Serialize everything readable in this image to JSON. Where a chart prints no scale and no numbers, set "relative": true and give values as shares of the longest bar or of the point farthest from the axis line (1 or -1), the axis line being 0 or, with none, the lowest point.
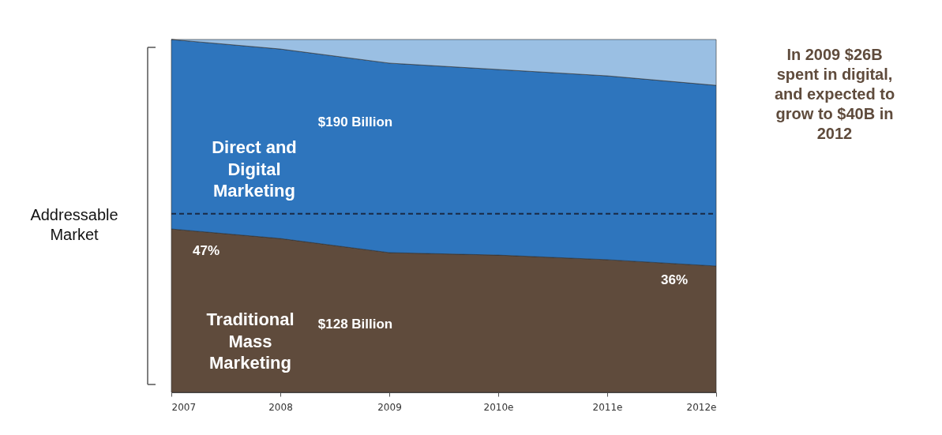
{
  "chart_data": {
    "type": "area",
    "stacked": true,
    "relative": true,
    "categories": [
      "2007",
      "2008",
      "2009",
      "2010e",
      "2011e",
      "2012e"
    ],
    "series": [
      {
        "name": "Traditional Mass Marketing",
        "color": "#5f4b3c",
        "values": [
          0.463,
          0.436,
          0.396,
          0.389,
          0.376,
          0.358
        ]
      },
      {
        "name": "Direct and Digital Marketing",
        "color": "#2e75bd",
        "values": [
          0.537,
          0.537,
          0.537,
          0.526,
          0.521,
          0.512
        ]
      },
      {
        "color": "#9abfe3",
        "values": [
          0,
          0.027,
          0.067,
          0.085,
          0.103,
          0.13
        ]
      }
    ],
    "ref_lines": [
      {
        "axis": "y",
        "value": 0.506,
        "line_style": "dashed",
        "color": "#1a2a44"
      }
    ],
    "annotations": [
      "In 2009 $26B spent in digital, and expected to grow to $40B in 2012",
      "Addressable Market",
      "$190 Billion",
      "$128 Billion",
      "47%",
      "36%"
    ],
    "grid": false,
    "legend": false
  }
}
